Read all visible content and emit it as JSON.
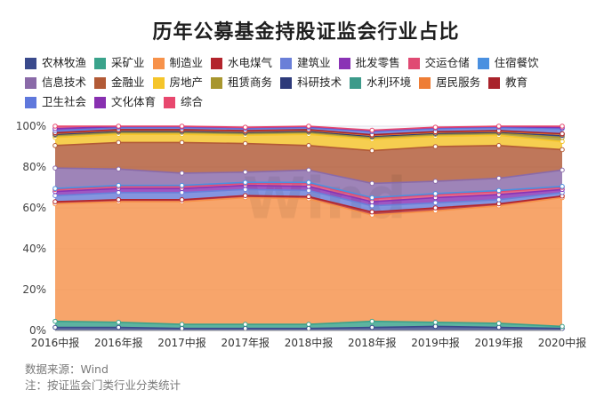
{
  "title": "历年公募基金持股证监会行业占比",
  "legend_rows": [
    [
      0,
      1,
      2,
      3,
      4,
      5,
      6,
      7
    ],
    [
      8,
      9,
      10,
      11,
      12,
      13,
      14,
      15
    ],
    [
      16,
      17,
      18
    ]
  ],
  "chart_data": {
    "type": "area",
    "stacked": true,
    "title": "历年公募基金持股证监会行业占比",
    "categories": [
      "2016中报",
      "2016年报",
      "2017中报",
      "2017年报",
      "2018中报",
      "2018年报",
      "2019中报",
      "2019年报",
      "2020中报"
    ],
    "y_axis": {
      "min": 0,
      "max": 100,
      "ticks": [
        "0%",
        "20%",
        "40%",
        "60%",
        "80%",
        "100%"
      ]
    },
    "grid": true,
    "legend_position": "top",
    "watermark": "Wind",
    "series": [
      {
        "name": "农林牧渔",
        "color": "#3a4a8c",
        "values": [
          1.5,
          1.5,
          1.0,
          1.0,
          1.0,
          1.5,
          2.0,
          1.5,
          1.0
        ]
      },
      {
        "name": "采矿业",
        "color": "#3aa38b",
        "values": [
          3.0,
          2.5,
          2.0,
          2.0,
          2.0,
          3.0,
          2.0,
          2.0,
          1.0
        ]
      },
      {
        "name": "制造业",
        "color": "#f7924a",
        "values": [
          57.5,
          59.0,
          60.0,
          62.0,
          61.5,
          52.0,
          54.5,
          57.5,
          63.0
        ]
      },
      {
        "name": "水电煤气",
        "color": "#b3242c",
        "values": [
          1.0,
          1.0,
          1.0,
          1.0,
          1.0,
          1.5,
          1.5,
          1.0,
          0.8
        ]
      },
      {
        "name": "建筑业",
        "color": "#6a7fd8",
        "values": [
          3.0,
          3.5,
          3.5,
          3.0,
          3.0,
          3.0,
          2.5,
          2.0,
          1.7
        ]
      },
      {
        "name": "批发零售",
        "color": "#8a33b5",
        "values": [
          2.0,
          2.0,
          2.0,
          2.0,
          2.0,
          2.0,
          2.5,
          2.5,
          1.5
        ]
      },
      {
        "name": "交运仓储",
        "color": "#e04a73",
        "values": [
          1.0,
          1.0,
          1.0,
          1.0,
          1.5,
          1.5,
          1.5,
          1.5,
          1.0
        ]
      },
      {
        "name": "住宿餐饮",
        "color": "#4a90e0",
        "values": [
          0.5,
          0.5,
          0.5,
          0.5,
          0.5,
          0.5,
          0.5,
          0.5,
          0.5
        ]
      },
      {
        "name": "信息技术",
        "color": "#8a6aa8",
        "values": [
          10.0,
          8.0,
          6.0,
          5.0,
          6.0,
          7.0,
          6.0,
          6.0,
          8.0
        ]
      },
      {
        "name": "金融业",
        "color": "#b25a36",
        "values": [
          11.0,
          13.0,
          15.0,
          14.0,
          12.0,
          16.0,
          17.0,
          16.0,
          10.0
        ]
      },
      {
        "name": "房地产",
        "color": "#f5c52a",
        "values": [
          4.0,
          4.0,
          4.0,
          4.0,
          5.5,
          5.5,
          5.0,
          5.0,
          4.0
        ]
      },
      {
        "name": "租赁商务",
        "color": "#a8962e",
        "values": [
          1.0,
          1.0,
          1.0,
          1.0,
          1.0,
          1.0,
          1.0,
          1.0,
          2.0
        ]
      },
      {
        "name": "科研技术",
        "color": "#2d3a7a",
        "values": [
          0.5,
          0.5,
          0.5,
          0.5,
          0.5,
          0.5,
          0.5,
          0.5,
          1.0
        ]
      },
      {
        "name": "水利环境",
        "color": "#3c9a8a",
        "values": [
          0.5,
          0.5,
          0.5,
          0.5,
          0.5,
          0.5,
          0.5,
          0.5,
          0.5
        ]
      },
      {
        "name": "居民服务",
        "color": "#ee7d35",
        "values": [
          0.0,
          0.0,
          0.0,
          0.0,
          0.0,
          0.0,
          0.0,
          0.0,
          0.0
        ]
      },
      {
        "name": "教育",
        "color": "#a9232b",
        "values": [
          0.3,
          0.3,
          0.3,
          0.3,
          0.3,
          0.3,
          0.3,
          0.3,
          0.3
        ]
      },
      {
        "name": "卫生社会",
        "color": "#5f78dc",
        "values": [
          1.0,
          1.0,
          1.0,
          1.0,
          1.0,
          1.5,
          1.5,
          1.5,
          2.5
        ]
      },
      {
        "name": "文化体育",
        "color": "#8830b0",
        "values": [
          1.0,
          0.5,
          0.5,
          0.5,
          0.5,
          0.5,
          0.5,
          0.5,
          0.5
        ]
      },
      {
        "name": "综合",
        "color": "#e8486e",
        "values": [
          1.2,
          0.2,
          0.2,
          0.2,
          0.2,
          0.2,
          0.2,
          0.2,
          0.7
        ]
      }
    ]
  },
  "source": {
    "line1": "数据来源：Wind",
    "line2": "注：按证监会门类行业分类统计"
  }
}
